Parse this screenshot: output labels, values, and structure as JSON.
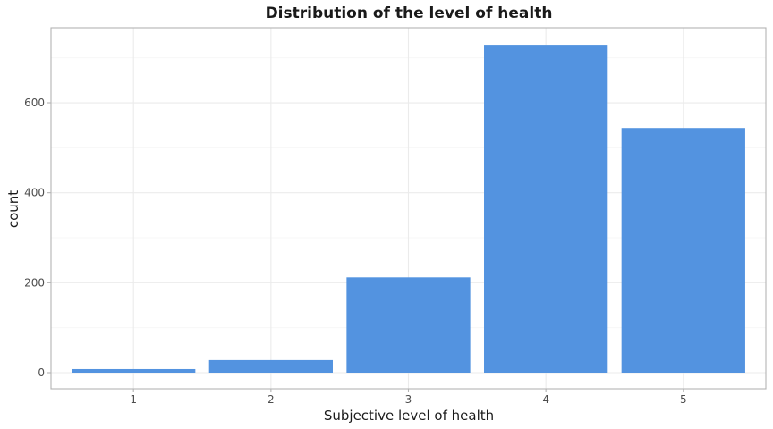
{
  "chart_data": {
    "type": "bar",
    "title": "Distribution of the level of health",
    "xlabel": "Subjective level of health",
    "ylabel": "count",
    "categories": [
      "1",
      "2",
      "3",
      "4",
      "5"
    ],
    "values": [
      8,
      28,
      212,
      729,
      544
    ],
    "ylim": [
      0,
      729
    ],
    "yticks": [
      0,
      200,
      400,
      600
    ],
    "grid": true,
    "bar_color": "#5393E0"
  }
}
